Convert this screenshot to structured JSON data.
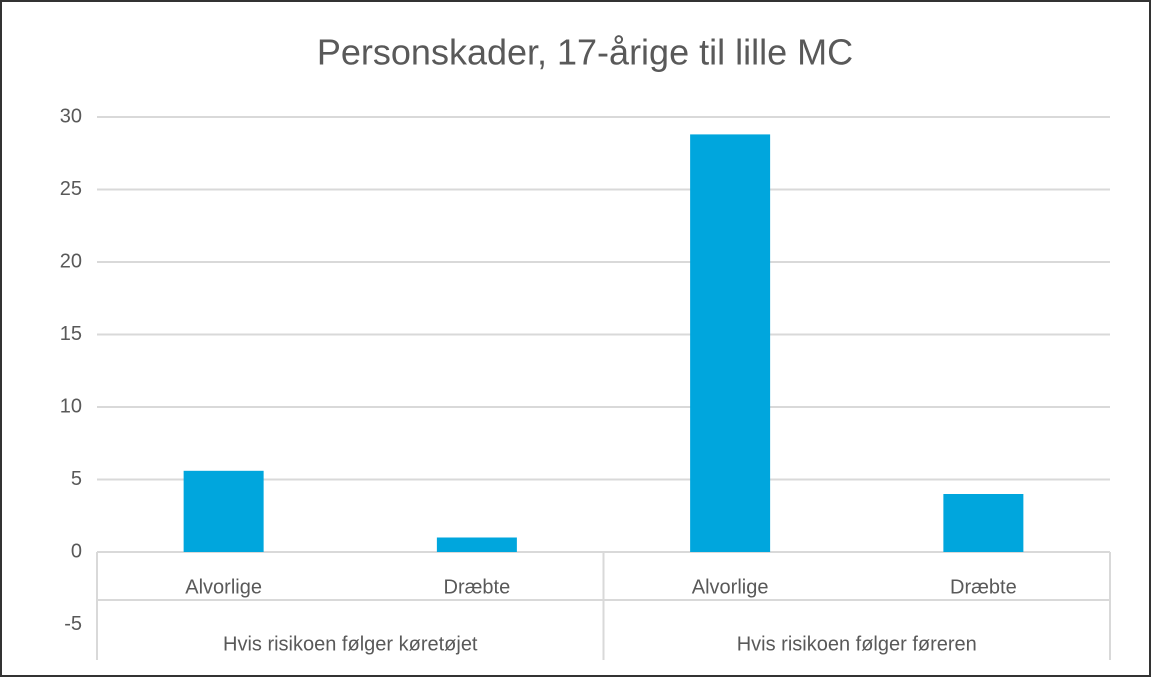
{
  "chart_data": {
    "type": "bar",
    "title": "Personskader,  17-årige til lille MC",
    "categories": [
      "Alvorlige",
      "Dræbte",
      "Alvorlige",
      "Dræbte"
    ],
    "group_labels": [
      "Hvis risikoen følger køretøjet",
      "Hvis risikoen følger føreren"
    ],
    "values": [
      5.6,
      1.0,
      28.8,
      4.0
    ],
    "color": "#00a6dd",
    "ylim": [
      -5,
      30
    ],
    "yticks": [
      -5,
      0,
      5,
      10,
      15,
      20,
      25,
      30
    ],
    "grid": true
  }
}
